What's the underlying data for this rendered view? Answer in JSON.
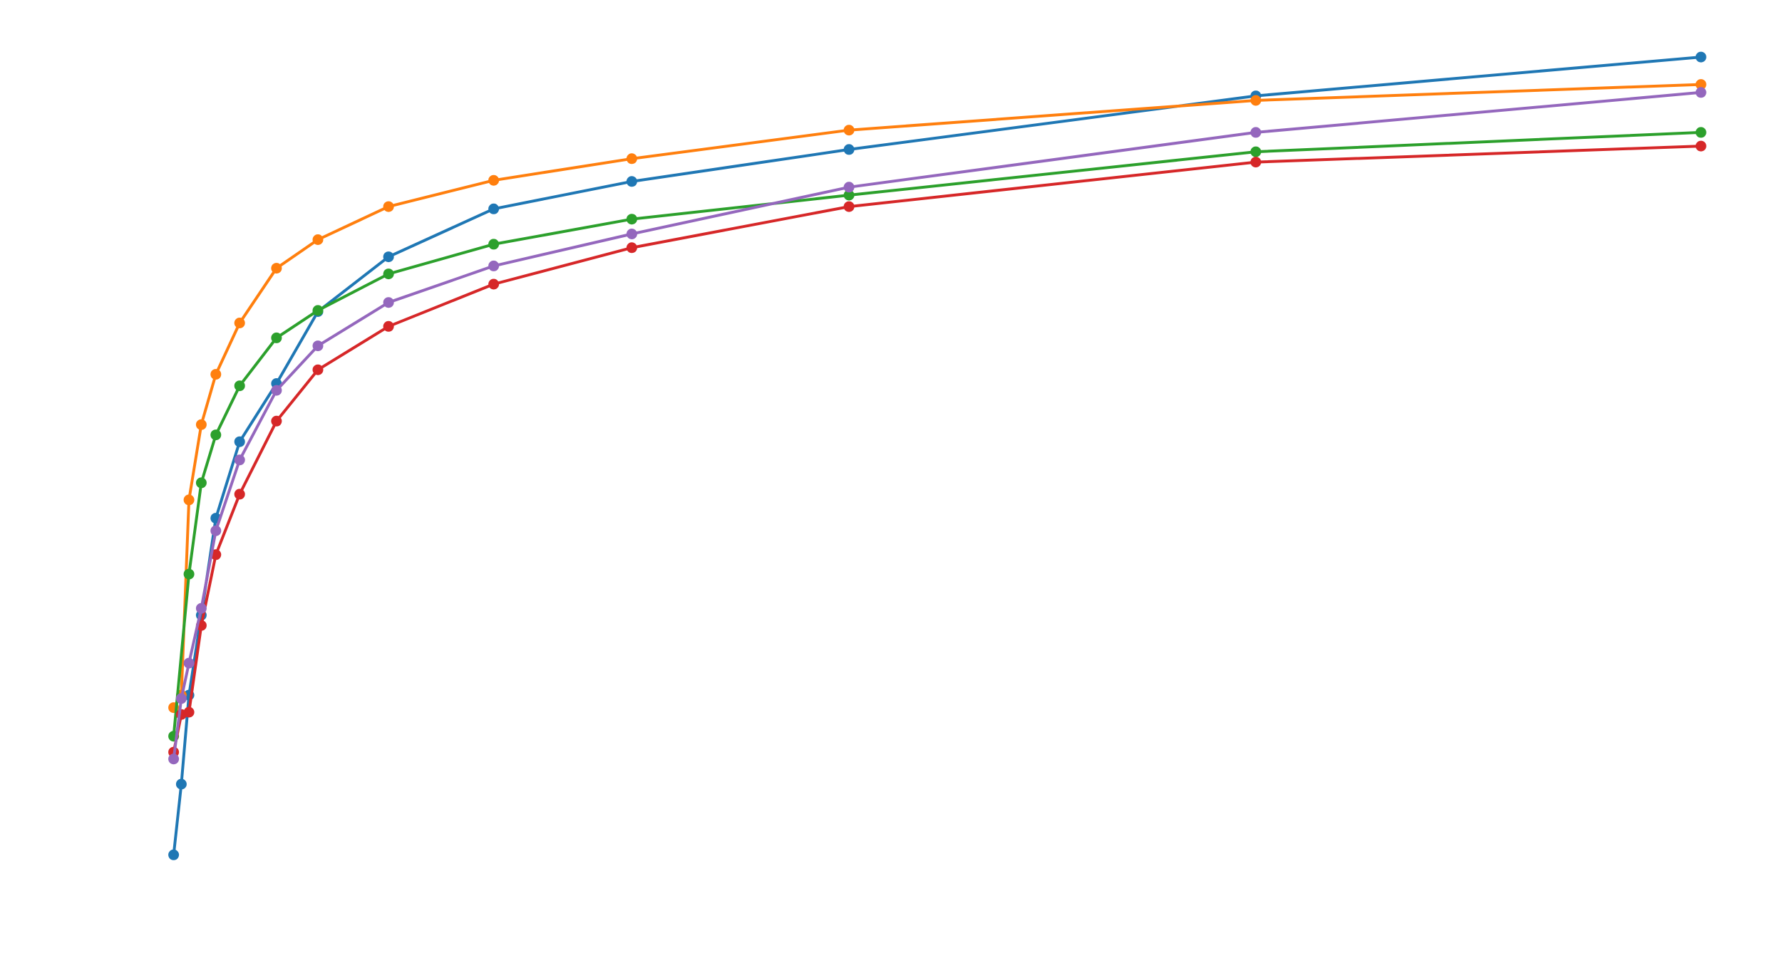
{
  "chart_data": {
    "type": "line",
    "title": "",
    "xlabel": "",
    "ylabel": "",
    "xlim": [
      0,
      205
    ],
    "ylim": [
      -5.5,
      80
    ],
    "grid": false,
    "axes_visible": false,
    "markers": "circle",
    "series": [
      {
        "color": "#1f77b4",
        "x": [
          1,
          2,
          3,
          4.6,
          6.5,
          9.6,
          14.4,
          19.8,
          29,
          42.7,
          60.7,
          89,
          142,
          200
        ],
        "y": [
          5.1,
          11.3,
          19.1,
          26.1,
          34.6,
          41.3,
          46.4,
          52.7,
          57.5,
          61.7,
          64.1,
          66.9,
          71.6,
          75.0
        ]
      },
      {
        "color": "#ff7f0e",
        "x": [
          1,
          2,
          3,
          4.6,
          6.5,
          9.6,
          14.4,
          19.8,
          29,
          42.7,
          60.7,
          89,
          142,
          200
        ],
        "y": [
          18.0,
          19.1,
          36.2,
          42.8,
          47.2,
          51.7,
          56.5,
          59.0,
          61.9,
          64.2,
          66.1,
          68.6,
          71.2,
          72.6
        ]
      },
      {
        "color": "#2ca02c",
        "x": [
          1,
          3,
          4.6,
          6.5,
          9.6,
          14.4,
          19.8,
          29,
          42.7,
          60.7,
          89,
          142,
          200
        ],
        "y": [
          15.5,
          29.7,
          37.7,
          41.9,
          46.2,
          50.4,
          52.8,
          56.0,
          58.6,
          60.8,
          62.9,
          66.7,
          68.4
        ]
      },
      {
        "color": "#d62728",
        "x": [
          1,
          2,
          3,
          4.6,
          6.5,
          9.6,
          14.4,
          19.8,
          29,
          42.7,
          60.7,
          89,
          142,
          200
        ],
        "y": [
          14.1,
          17.4,
          17.6,
          25.2,
          31.4,
          36.7,
          43.1,
          47.6,
          51.4,
          55.1,
          58.3,
          61.9,
          65.8,
          67.2
        ]
      },
      {
        "color": "#9467bd",
        "x": [
          1,
          2,
          3,
          4.6,
          6.5,
          9.6,
          14.4,
          19.8,
          29,
          42.7,
          60.7,
          89,
          142,
          200
        ],
        "y": [
          13.5,
          18.8,
          21.9,
          26.7,
          33.5,
          39.7,
          45.8,
          49.7,
          53.5,
          56.7,
          59.5,
          63.6,
          68.4,
          71.9
        ]
      }
    ]
  }
}
